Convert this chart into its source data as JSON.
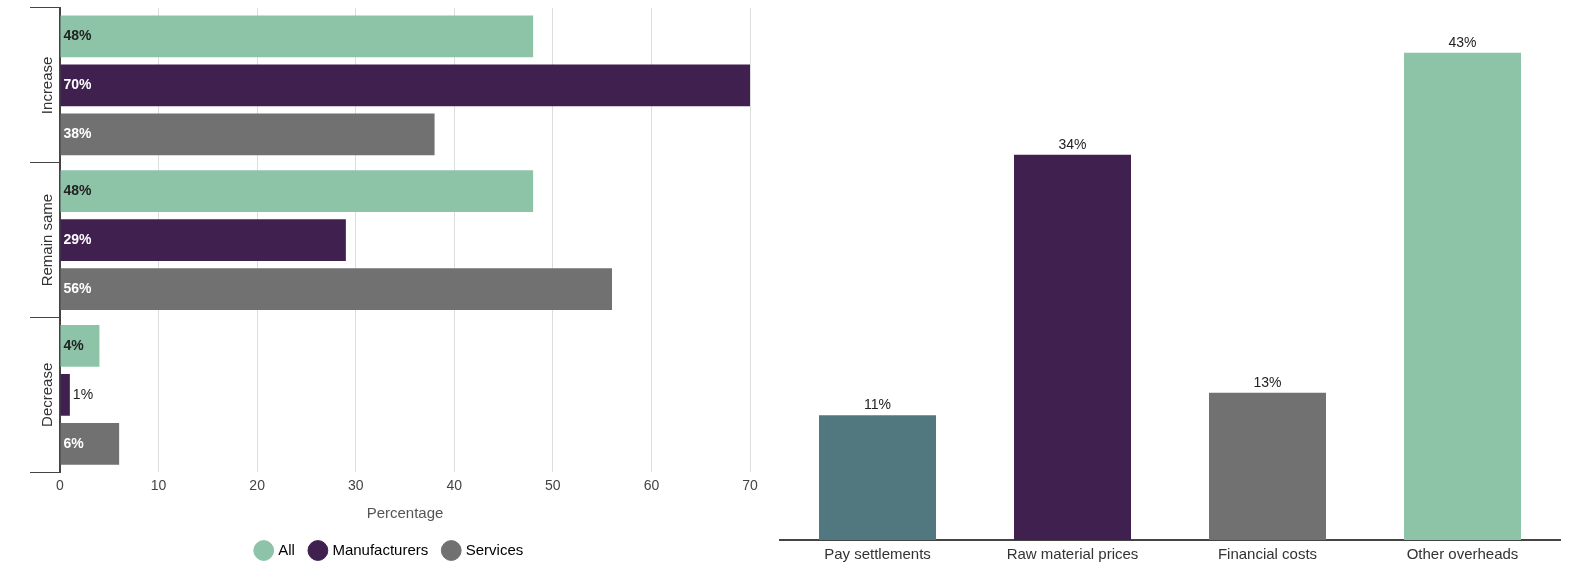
{
  "chart_data": [
    {
      "type": "bar",
      "orientation": "horizontal",
      "categories": [
        "Increase",
        "Remain same",
        "Decrease"
      ],
      "xlabel": "Percentage",
      "xlim": [
        0,
        70
      ],
      "xticks": [
        0,
        10,
        20,
        30,
        40,
        50,
        60,
        70
      ],
      "grid": "x",
      "legend": "bottom",
      "series": [
        {
          "name": "All",
          "color": "#8dc4a8",
          "values": [
            48,
            48,
            4
          ],
          "value_labels": [
            "48%",
            "48%",
            "4%"
          ]
        },
        {
          "name": "Manufacturers",
          "color": "#40204e",
          "values": [
            70,
            29,
            1
          ],
          "value_labels": [
            "70%",
            "29%",
            "1%"
          ]
        },
        {
          "name": "Services",
          "color": "#717171",
          "values": [
            38,
            56,
            6
          ],
          "value_labels": [
            "38%",
            "56%",
            "6%"
          ]
        }
      ]
    },
    {
      "type": "bar",
      "categories": [
        "Pay settlements",
        "Raw material prices",
        "Financial costs",
        "Other overheads"
      ],
      "values": [
        11,
        34,
        13,
        43
      ],
      "colors": [
        "#51787f",
        "#40204e",
        "#717171",
        "#8dc4a8"
      ],
      "value_labels": [
        "11%",
        "34%",
        "13%",
        "43%"
      ],
      "tick_labels": "x",
      "grid": false
    }
  ]
}
